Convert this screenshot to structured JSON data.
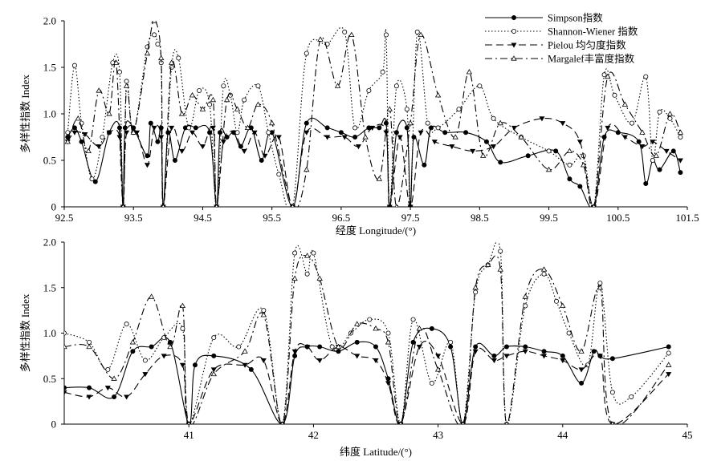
{
  "chart_data": [
    {
      "type": "line",
      "xlabel": "经度 Longitude/(°)",
      "ylabel": "多样性指数 Index",
      "xlim": [
        92.5,
        101.5
      ],
      "ylim": [
        0,
        2.0
      ],
      "xticks": [
        "92.5",
        "93.5",
        "94.5",
        "95.5",
        "96.5",
        "97.5",
        "98.5",
        "99.5",
        "100.5",
        "101.5"
      ],
      "yticks": [
        "0",
        "0.5",
        "1.0",
        "1.5",
        "2.0"
      ],
      "legend_position": "top-right",
      "series": [
        {
          "name": "Simpson指数",
          "style": "solid",
          "marker": "filled-circle",
          "color": "#000000",
          "x": [
            92.55,
            92.65,
            92.75,
            92.95,
            93.15,
            93.3,
            93.35,
            93.38,
            93.5,
            93.7,
            93.75,
            93.85,
            93.9,
            93.93,
            94.0,
            94.1,
            94.25,
            94.4,
            94.6,
            94.7,
            94.75,
            94.85,
            94.95,
            95.05,
            95.2,
            95.35,
            95.5,
            95.8,
            96.0,
            96.3,
            96.5,
            96.7,
            96.9,
            97.05,
            97.15,
            97.2,
            97.3,
            97.45,
            97.5,
            97.55,
            97.7,
            97.8,
            98.0,
            98.3,
            98.6,
            98.8,
            99.2,
            99.6,
            99.8,
            99.95,
            100.15,
            100.3,
            100.5,
            100.8,
            100.9,
            101.0,
            101.1,
            101.3,
            101.4
          ],
          "y": [
            0.75,
            0.85,
            0.7,
            0.27,
            0.8,
            0.85,
            0.0,
            0.85,
            0.85,
            0.55,
            0.9,
            0.7,
            0.85,
            0.0,
            0.8,
            0.5,
            0.85,
            0.85,
            0.8,
            0.0,
            0.8,
            0.75,
            0.8,
            0.65,
            0.85,
            0.5,
            0.8,
            0.0,
            0.9,
            0.85,
            0.8,
            0.75,
            0.85,
            0.85,
            0.9,
            0.0,
            0.8,
            0.85,
            0.0,
            0.75,
            0.45,
            0.85,
            0.8,
            0.8,
            0.7,
            0.48,
            0.55,
            0.6,
            0.3,
            0.22,
            0.0,
            0.75,
            0.8,
            0.7,
            0.25,
            0.5,
            0.4,
            0.6,
            0.37
          ]
        },
        {
          "name": "Shannon-Wiener 指数",
          "style": "dotted",
          "marker": "open-circle",
          "color": "#000000",
          "x": [
            92.55,
            92.65,
            92.75,
            92.9,
            93.05,
            93.2,
            93.3,
            93.35,
            93.4,
            93.5,
            93.7,
            93.8,
            93.85,
            93.9,
            93.93,
            94.05,
            94.15,
            94.3,
            94.45,
            94.6,
            94.7,
            94.8,
            94.9,
            95.0,
            95.1,
            95.3,
            95.45,
            95.6,
            95.8,
            96.0,
            96.3,
            96.55,
            96.7,
            96.9,
            97.1,
            97.15,
            97.2,
            97.3,
            97.45,
            97.5,
            97.6,
            97.75,
            97.9,
            98.2,
            98.5,
            98.7,
            99.1,
            99.5,
            99.8,
            100.0,
            100.15,
            100.3,
            100.45,
            100.7,
            100.9,
            101.0,
            101.1,
            101.25,
            101.4
          ],
          "y": [
            0.8,
            1.52,
            0.9,
            0.3,
            0.75,
            1.55,
            1.45,
            0.0,
            1.35,
            0.8,
            1.72,
            1.85,
            1.75,
            1.55,
            0.0,
            1.5,
            1.6,
            0.85,
            1.25,
            1.1,
            0.0,
            1.3,
            1.2,
            0.8,
            1.15,
            1.3,
            0.8,
            0.35,
            0.0,
            1.65,
            1.75,
            1.88,
            0.85,
            1.25,
            1.45,
            1.85,
            0.0,
            1.3,
            1.05,
            0.0,
            1.88,
            0.9,
            0.85,
            1.05,
            1.3,
            0.95,
            0.75,
            0.6,
            0.45,
            0.55,
            0.0,
            1.42,
            1.2,
            0.9,
            1.4,
            0.5,
            1.02,
            0.95,
            0.75
          ]
        },
        {
          "name": "Pielou 均匀度指数",
          "style": "dashed",
          "marker": "filled-triangle-down",
          "color": "#000000",
          "x": [
            92.55,
            92.65,
            92.8,
            93.0,
            93.15,
            93.3,
            93.35,
            93.4,
            93.55,
            93.7,
            93.8,
            93.9,
            93.93,
            94.05,
            94.2,
            94.35,
            94.5,
            94.65,
            94.7,
            94.8,
            94.95,
            95.1,
            95.25,
            95.4,
            95.6,
            95.8,
            96.0,
            96.3,
            96.55,
            96.75,
            96.95,
            97.15,
            97.2,
            97.35,
            97.5,
            97.65,
            97.85,
            98.1,
            98.4,
            98.7,
            99.0,
            99.4,
            99.7,
            99.95,
            100.15,
            100.35,
            100.6,
            100.85,
            101.0,
            101.2,
            101.4
          ],
          "y": [
            0.7,
            0.8,
            0.78,
            0.65,
            0.8,
            0.75,
            0.0,
            0.8,
            0.8,
            0.45,
            0.85,
            0.75,
            0.0,
            0.85,
            0.6,
            0.8,
            0.65,
            0.85,
            0.0,
            0.7,
            0.8,
            0.6,
            0.8,
            0.55,
            0.75,
            0.0,
            0.8,
            0.75,
            0.75,
            0.65,
            0.85,
            0.8,
            0.0,
            0.75,
            0.0,
            0.8,
            0.7,
            0.65,
            0.6,
            0.65,
            0.85,
            0.95,
            0.9,
            0.7,
            0.0,
            0.85,
            0.75,
            0.65,
            0.7,
            0.6,
            0.5
          ]
        },
        {
          "name": "Margalef丰富度指数",
          "style": "dash-dot",
          "marker": "open-triangle",
          "color": "#000000",
          "x": [
            92.55,
            92.7,
            92.85,
            93.0,
            93.15,
            93.25,
            93.35,
            93.4,
            93.5,
            93.7,
            93.8,
            93.9,
            93.93,
            94.05,
            94.2,
            94.35,
            94.5,
            94.65,
            94.7,
            94.85,
            95.0,
            95.15,
            95.3,
            95.5,
            95.8,
            96.0,
            96.2,
            96.45,
            96.65,
            96.85,
            97.05,
            97.2,
            97.3,
            97.5,
            97.65,
            97.9,
            98.15,
            98.35,
            98.55,
            98.8,
            99.1,
            99.5,
            99.8,
            100.0,
            100.15,
            100.35,
            100.6,
            100.85,
            101.05,
            101.25,
            101.4
          ],
          "y": [
            0.7,
            0.95,
            0.6,
            1.25,
            1.0,
            1.55,
            0.0,
            1.3,
            0.8,
            1.65,
            2.0,
            1.6,
            0.0,
            1.55,
            1.0,
            1.2,
            1.05,
            1.15,
            0.0,
            1.15,
            1.05,
            0.85,
            1.1,
            0.9,
            0.0,
            0.4,
            1.8,
            1.3,
            1.85,
            0.75,
            0.3,
            1.05,
            0.0,
            0.9,
            1.85,
            1.2,
            0.75,
            1.45,
            0.55,
            0.9,
            0.75,
            0.4,
            0.6,
            0.45,
            0.0,
            1.4,
            1.1,
            0.8,
            0.55,
            1.0,
            0.8
          ]
        }
      ]
    },
    {
      "type": "line",
      "xlabel": "纬度 Latitude/(°)",
      "ylabel": "多样性指数 Index",
      "xlim": [
        40.0,
        45.0
      ],
      "ylim": [
        0,
        2.0
      ],
      "xticks": [
        "41",
        "42",
        "43",
        "44",
        "45"
      ],
      "yticks": [
        "0",
        "0.5",
        "1.0",
        "1.5",
        "2.0"
      ],
      "series": [
        {
          "name": "Simpson指数",
          "style": "solid",
          "marker": "filled-circle",
          "color": "#000000",
          "x": [
            40.0,
            40.2,
            40.4,
            40.55,
            40.7,
            40.85,
            41.0,
            41.05,
            41.2,
            41.5,
            41.75,
            41.85,
            41.95,
            42.05,
            42.2,
            42.35,
            42.5,
            42.6,
            42.7,
            42.8,
            42.95,
            43.1,
            43.2,
            43.3,
            43.45,
            43.55,
            43.7,
            43.85,
            44.0,
            44.15,
            44.25,
            44.3,
            44.4,
            44.85
          ],
          "y": [
            0.4,
            0.4,
            0.3,
            0.8,
            0.85,
            0.9,
            0.0,
            0.65,
            0.75,
            0.6,
            0.0,
            0.75,
            0.85,
            0.85,
            0.8,
            0.9,
            0.85,
            0.5,
            0.0,
            0.9,
            1.05,
            0.85,
            0.0,
            0.85,
            0.75,
            0.85,
            0.85,
            0.8,
            0.75,
            0.45,
            0.8,
            0.75,
            0.72,
            0.85
          ]
        },
        {
          "name": "Shannon-Wiener 指数",
          "style": "dotted",
          "marker": "open-circle",
          "color": "#000000",
          "x": [
            40.0,
            40.2,
            40.35,
            40.5,
            40.65,
            40.8,
            40.95,
            41.0,
            41.2,
            41.4,
            41.6,
            41.75,
            41.85,
            41.95,
            42.0,
            42.15,
            42.3,
            42.45,
            42.6,
            42.7,
            42.8,
            42.95,
            43.1,
            43.2,
            43.3,
            43.4,
            43.5,
            43.55,
            43.7,
            43.85,
            43.95,
            44.05,
            44.2,
            44.3,
            44.4,
            44.55,
            44.85
          ],
          "y": [
            1.0,
            0.9,
            0.6,
            1.1,
            0.7,
            0.95,
            1.05,
            0.0,
            0.95,
            0.85,
            1.25,
            0.0,
            1.88,
            1.65,
            1.88,
            0.85,
            1.0,
            1.15,
            1.0,
            0.0,
            1.15,
            0.45,
            0.9,
            0.0,
            1.45,
            1.75,
            1.9,
            0.0,
            1.3,
            1.65,
            1.35,
            1.0,
            0.65,
            1.55,
            0.35,
            0.3,
            0.78
          ]
        },
        {
          "name": "Pielou 均匀度指数",
          "style": "dashed",
          "marker": "filled-triangle-down",
          "color": "#000000",
          "x": [
            40.0,
            40.2,
            40.35,
            40.5,
            40.65,
            40.8,
            40.95,
            41.0,
            41.2,
            41.45,
            41.6,
            41.75,
            41.85,
            41.95,
            42.05,
            42.2,
            42.35,
            42.5,
            42.6,
            42.7,
            42.85,
            43.0,
            43.2,
            43.3,
            43.45,
            43.55,
            43.7,
            43.85,
            44.0,
            44.15,
            44.3,
            44.4,
            44.85
          ],
          "y": [
            0.35,
            0.3,
            0.4,
            0.3,
            0.55,
            0.75,
            0.65,
            0.0,
            0.6,
            0.65,
            0.7,
            0.0,
            0.8,
            0.85,
            0.7,
            0.85,
            0.75,
            0.7,
            0.45,
            0.0,
            0.85,
            0.75,
            0.0,
            0.8,
            0.7,
            0.75,
            0.8,
            0.75,
            0.7,
            0.6,
            0.75,
            0.0,
            0.55
          ]
        },
        {
          "name": "Margalef丰富度指数",
          "style": "dash-dot",
          "marker": "open-triangle",
          "color": "#000000",
          "x": [
            40.0,
            40.2,
            40.4,
            40.55,
            40.7,
            40.85,
            40.95,
            41.0,
            41.2,
            41.45,
            41.6,
            41.75,
            41.85,
            41.95,
            42.05,
            42.2,
            42.35,
            42.5,
            42.6,
            42.7,
            42.85,
            43.0,
            43.2,
            43.3,
            43.4,
            43.5,
            43.55,
            43.7,
            43.85,
            44.0,
            44.15,
            44.3,
            44.4,
            44.85
          ],
          "y": [
            0.85,
            0.85,
            0.5,
            0.9,
            1.4,
            0.85,
            1.3,
            0.0,
            0.55,
            0.8,
            1.2,
            0.0,
            1.6,
            1.85,
            1.6,
            0.85,
            1.1,
            1.05,
            0.9,
            0.0,
            1.05,
            0.6,
            0.0,
            1.5,
            1.75,
            1.7,
            0.0,
            1.4,
            1.7,
            1.3,
            0.8,
            1.5,
            0.0,
            0.65
          ]
        }
      ]
    }
  ]
}
